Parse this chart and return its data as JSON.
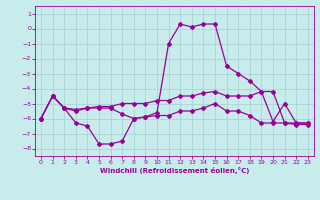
{
  "xlabel": "Windchill (Refroidissement éolien,°C)",
  "bg_color": "#c8ecec",
  "grid_color": "#aad4d4",
  "line_color": "#990099",
  "spine_color": "#660066",
  "xlim": [
    -0.5,
    23.5
  ],
  "ylim": [
    -8.5,
    1.5
  ],
  "yticks": [
    1,
    0,
    -1,
    -2,
    -3,
    -4,
    -5,
    -6,
    -7,
    -8
  ],
  "xticks": [
    0,
    1,
    2,
    3,
    4,
    5,
    6,
    7,
    8,
    9,
    10,
    11,
    12,
    13,
    14,
    15,
    16,
    17,
    18,
    19,
    20,
    21,
    22,
    23
  ],
  "series1_x": [
    0,
    1,
    2,
    3,
    4,
    5,
    6,
    7,
    8,
    9,
    10,
    11,
    12,
    13,
    14,
    15,
    16,
    17,
    18,
    19,
    20,
    21,
    22,
    23
  ],
  "series1_y": [
    -6.0,
    -4.5,
    -5.3,
    -5.4,
    -5.3,
    -5.2,
    -5.2,
    -5.0,
    -5.0,
    -5.0,
    -4.8,
    -4.8,
    -4.5,
    -4.5,
    -4.3,
    -4.2,
    -4.5,
    -4.5,
    -4.5,
    -4.2,
    -4.2,
    -6.3,
    -6.3,
    -6.3
  ],
  "series2_x": [
    0,
    1,
    2,
    3,
    4,
    5,
    6,
    7,
    8,
    9,
    10,
    11,
    12,
    13,
    14,
    15,
    16,
    17,
    18,
    19,
    20,
    21,
    22,
    23
  ],
  "series2_y": [
    -6.0,
    -4.5,
    -5.3,
    -6.3,
    -6.5,
    -7.7,
    -7.7,
    -7.5,
    -6.0,
    -5.9,
    -5.6,
    -1.0,
    0.3,
    0.1,
    0.3,
    0.3,
    -2.5,
    -3.0,
    -3.5,
    -4.2,
    -6.2,
    -5.0,
    -6.3,
    -6.3
  ],
  "series3_x": [
    0,
    1,
    2,
    3,
    4,
    5,
    6,
    7,
    8,
    9,
    10,
    11,
    12,
    13,
    14,
    15,
    16,
    17,
    18,
    19,
    20,
    21,
    22,
    23
  ],
  "series3_y": [
    -6.0,
    -4.5,
    -5.3,
    -5.5,
    -5.3,
    -5.3,
    -5.3,
    -5.7,
    -6.0,
    -5.9,
    -5.8,
    -5.8,
    -5.5,
    -5.5,
    -5.3,
    -5.0,
    -5.5,
    -5.5,
    -5.8,
    -6.3,
    -6.3,
    -6.3,
    -6.4,
    -6.4
  ]
}
